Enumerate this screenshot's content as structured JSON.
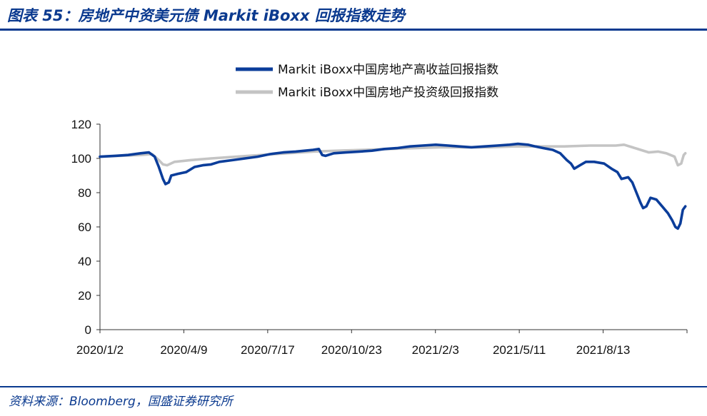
{
  "figure": {
    "title": "图表 55：房地产中资美元债 Markit iBoxx 回报指数走势",
    "source": "资料来源：Bloomberg，国盛证券研究所"
  },
  "chart_data": {
    "type": "line",
    "title": "",
    "xlabel": "",
    "ylabel": "",
    "ylim": [
      0,
      120
    ],
    "yticks": [
      0,
      20,
      40,
      60,
      80,
      100,
      120
    ],
    "xlim": [
      "2020-01-02",
      "2021-12-10"
    ],
    "xticks": [
      "2020/1/2",
      "2020/4/9",
      "2020/7/17",
      "2020/10/23",
      "2021/2/3",
      "2021/5/11",
      "2021/8/13"
    ],
    "legend_position": "top-right",
    "series": [
      {
        "name": "Markit iBoxx中国房地产高收益回报指数",
        "color": "#0b3d9a",
        "points": [
          [
            "2020-01-02",
            101.0
          ],
          [
            "2020-01-20",
            101.5
          ],
          [
            "2020-02-05",
            102.0
          ],
          [
            "2020-02-20",
            103.0
          ],
          [
            "2020-03-01",
            103.5
          ],
          [
            "2020-03-08",
            101.0
          ],
          [
            "2020-03-13",
            95.0
          ],
          [
            "2020-03-18",
            88.0
          ],
          [
            "2020-03-21",
            85.0
          ],
          [
            "2020-03-25",
            86.0
          ],
          [
            "2020-03-28",
            90.0
          ],
          [
            "2020-04-05",
            91.0
          ],
          [
            "2020-04-15",
            92.0
          ],
          [
            "2020-04-25",
            95.0
          ],
          [
            "2020-05-05",
            96.0
          ],
          [
            "2020-05-15",
            96.5
          ],
          [
            "2020-05-25",
            98.0
          ],
          [
            "2020-06-10",
            99.0
          ],
          [
            "2020-06-25",
            100.0
          ],
          [
            "2020-07-10",
            101.0
          ],
          [
            "2020-07-25",
            102.5
          ],
          [
            "2020-08-10",
            103.5
          ],
          [
            "2020-08-25",
            104.0
          ],
          [
            "2020-09-05",
            104.5
          ],
          [
            "2020-09-15",
            105.0
          ],
          [
            "2020-09-22",
            105.5
          ],
          [
            "2020-09-26",
            102.0
          ],
          [
            "2020-09-30",
            101.5
          ],
          [
            "2020-10-10",
            103.0
          ],
          [
            "2020-10-25",
            103.5
          ],
          [
            "2020-11-10",
            104.0
          ],
          [
            "2020-11-25",
            104.5
          ],
          [
            "2020-12-10",
            105.5
          ],
          [
            "2020-12-25",
            106.0
          ],
          [
            "2021-01-10",
            107.0
          ],
          [
            "2021-01-25",
            107.5
          ],
          [
            "2021-02-10",
            108.0
          ],
          [
            "2021-02-25",
            107.5
          ],
          [
            "2021-03-10",
            107.0
          ],
          [
            "2021-03-25",
            106.5
          ],
          [
            "2021-04-10",
            107.0
          ],
          [
            "2021-04-25",
            107.5
          ],
          [
            "2021-05-10",
            108.0
          ],
          [
            "2021-05-20",
            108.5
          ],
          [
            "2021-06-01",
            108.0
          ],
          [
            "2021-06-10",
            107.0
          ],
          [
            "2021-06-20",
            106.0
          ],
          [
            "2021-07-01",
            105.0
          ],
          [
            "2021-07-10",
            103.0
          ],
          [
            "2021-07-18",
            99.0
          ],
          [
            "2021-07-23",
            97.0
          ],
          [
            "2021-07-27",
            94.0
          ],
          [
            "2021-08-03",
            96.0
          ],
          [
            "2021-08-10",
            98.0
          ],
          [
            "2021-08-20",
            98.0
          ],
          [
            "2021-09-01",
            97.0
          ],
          [
            "2021-09-10",
            94.0
          ],
          [
            "2021-09-17",
            92.0
          ],
          [
            "2021-09-22",
            88.0
          ],
          [
            "2021-09-30",
            89.0
          ],
          [
            "2021-10-05",
            86.0
          ],
          [
            "2021-10-10",
            80.0
          ],
          [
            "2021-10-15",
            74.0
          ],
          [
            "2021-10-18",
            71.0
          ],
          [
            "2021-10-22",
            72.0
          ],
          [
            "2021-10-27",
            77.0
          ],
          [
            "2021-11-03",
            76.0
          ],
          [
            "2021-11-10",
            72.0
          ],
          [
            "2021-11-17",
            68.0
          ],
          [
            "2021-11-22",
            64.0
          ],
          [
            "2021-11-26",
            60.0
          ],
          [
            "2021-11-29",
            59.0
          ],
          [
            "2021-12-02",
            62.0
          ],
          [
            "2021-12-05",
            70.0
          ],
          [
            "2021-12-08",
            72.0
          ]
        ]
      },
      {
        "name": "Markit iBoxx中国房地产投资级回报指数",
        "color": "#c4c4c4",
        "points": [
          [
            "2020-01-02",
            101.0
          ],
          [
            "2020-01-25",
            101.5
          ],
          [
            "2020-02-20",
            102.0
          ],
          [
            "2020-03-05",
            102.5
          ],
          [
            "2020-03-13",
            99.0
          ],
          [
            "2020-03-18",
            96.5
          ],
          [
            "2020-03-23",
            96.0
          ],
          [
            "2020-04-01",
            98.0
          ],
          [
            "2020-04-20",
            99.0
          ],
          [
            "2020-05-15",
            100.0
          ],
          [
            "2020-06-15",
            101.0
          ],
          [
            "2020-07-15",
            102.0
          ],
          [
            "2020-08-15",
            103.0
          ],
          [
            "2020-09-15",
            104.0
          ],
          [
            "2020-10-15",
            104.5
          ],
          [
            "2020-11-15",
            105.0
          ],
          [
            "2020-12-15",
            105.5
          ],
          [
            "2021-01-15",
            106.0
          ],
          [
            "2021-02-15",
            106.5
          ],
          [
            "2021-03-15",
            106.5
          ],
          [
            "2021-04-15",
            106.5
          ],
          [
            "2021-05-15",
            107.0
          ],
          [
            "2021-06-15",
            107.0
          ],
          [
            "2021-07-15",
            107.0
          ],
          [
            "2021-08-15",
            107.5
          ],
          [
            "2021-09-15",
            107.5
          ],
          [
            "2021-09-25",
            108.0
          ],
          [
            "2021-10-05",
            106.5
          ],
          [
            "2021-10-15",
            105.0
          ],
          [
            "2021-10-25",
            103.5
          ],
          [
            "2021-11-05",
            104.0
          ],
          [
            "2021-11-15",
            103.0
          ],
          [
            "2021-11-25",
            101.0
          ],
          [
            "2021-11-29",
            96.0
          ],
          [
            "2021-12-03",
            97.0
          ],
          [
            "2021-12-06",
            102.0
          ],
          [
            "2021-12-08",
            103.0
          ]
        ]
      }
    ]
  }
}
